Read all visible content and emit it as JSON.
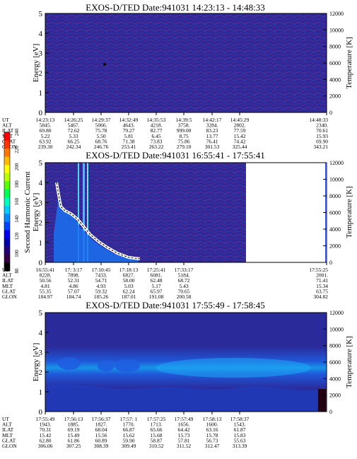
{
  "colorbar": {
    "label": "Second Harmonic Current",
    "ticks": [
      "240",
      "220",
      "200",
      "180",
      "160",
      "140",
      "120",
      "100",
      "80"
    ],
    "colors": [
      "#ff0000",
      "#ff3300",
      "#ff7700",
      "#ffbb00",
      "#ffff00",
      "#bbff00",
      "#55ff00",
      "#00ff55",
      "#00ffbb",
      "#00ccff",
      "#0088ff",
      "#0044ff",
      "#0000ee",
      "#0000aa",
      "#220077",
      "#330044",
      "#000000"
    ]
  },
  "chart_data": [
    {
      "type": "heatmap",
      "title": "EXOS-D/TED   Date:941031  14:23:13 - 14:48:33",
      "ylabel": "Energy [eV]",
      "ylabel2": "Temperature [K]",
      "ylim": [
        0,
        5
      ],
      "yticks": [
        "5",
        "4",
        "3",
        "2",
        "1",
        "0"
      ],
      "y2lim": [
        0,
        12000
      ],
      "y2ticks": [
        "12000",
        "10000",
        "8000",
        "6000",
        "4000",
        "2000",
        "0"
      ],
      "background": "#2a2a9a",
      "ephemeris": {
        "labels": [
          "UT",
          "ALT",
          "ILAT",
          "MLT",
          "GLAT",
          "GLON"
        ],
        "columns": [
          [
            "14:23:13",
            "5845.",
            "69.80",
            "5.22",
            "63.92",
            "239.30"
          ],
          [
            "14:26:25",
            "5467.",
            "72.62",
            "5.33",
            "66.25",
            "242.34"
          ],
          [
            "14:29:37",
            "5066.",
            "75.78",
            "5.50",
            "68.76",
            "246.76"
          ],
          [
            "14:32:49",
            "4643.",
            "79.27",
            "5.81",
            "71.38",
            "253.41"
          ],
          [
            "14:35:53",
            "4218.",
            "82.77",
            "6.45",
            "73.83",
            "263.22"
          ],
          [
            "14:39:5",
            "3758.",
            "999.00",
            "8.75",
            "75.86",
            "279.10"
          ],
          [
            "14:42:17",
            "3284.",
            "83.23",
            "13.77",
            "76.41",
            "301.53"
          ],
          [
            "14:45:29",
            "2802.",
            "77.59",
            "15.42",
            "74.42",
            "325.44"
          ],
          [
            "14:48:33",
            "2340.",
            "70.61",
            "15.93",
            "69.90",
            "343.21"
          ]
        ]
      }
    },
    {
      "type": "heatmap",
      "title": "EXOS-D/TED   Date:941031  16:55:41 - 17:55:41",
      "ylabel": "Energy [eV]",
      "ylabel2": "Temperature [K]",
      "ylim": [
        0,
        5
      ],
      "yticks": [
        "5",
        "4",
        "3",
        "2",
        "1",
        "0"
      ],
      "y2lim": [
        0,
        12000
      ],
      "y2ticks": [
        "12000",
        "10000",
        "8000",
        "6000",
        "4000",
        "2000",
        "0"
      ],
      "background": "#2a2a9a",
      "ephemeris": {
        "labels": [
          "UT",
          "ALT",
          "ILAT",
          "MLT",
          "GLAT",
          "GLON"
        ],
        "columns": [
          [
            "16:55:41",
            "8228.",
            "50.56",
            "4.81",
            "55.35",
            "184.97"
          ],
          [
            "17: 3:17",
            "7898.",
            "52.31",
            "4.86",
            "57.07",
            "184.74"
          ],
          [
            "17:10:45",
            "7433.",
            "54.71",
            "4.93",
            "59.32",
            "185.26"
          ],
          [
            "17:18:13",
            "6827.",
            "58.00",
            "5.03",
            "62.24",
            "187.01"
          ],
          [
            "17:25:41",
            "6081.",
            "62.48",
            "5.17",
            "65.97",
            "191.08"
          ],
          [
            "17:33:17",
            "5184.",
            "68.72",
            "5.43",
            "70.65",
            "200.58"
          ],
          [
            "17:55:25",
            "2001.",
            "71.41",
            "15.34",
            "63.75",
            "304.82"
          ]
        ]
      }
    },
    {
      "type": "heatmap",
      "title": "EXOS-D/TED   Date:941031  17:55:49 - 17:58:45",
      "ylabel": "Energy [eV]",
      "ylabel2": "Temperature [K]",
      "ylim": [
        0,
        5
      ],
      "yticks": [
        "5",
        "4",
        "3",
        "2",
        "1",
        "0"
      ],
      "y2lim": [
        0,
        12000
      ],
      "y2ticks": [
        "12000",
        "10000",
        "8000",
        "6000",
        "4000",
        "2000",
        "0"
      ],
      "background": "#2a2a9a",
      "ephemeris": {
        "labels": [
          "UT",
          "ALT",
          "ILAT",
          "MLT",
          "GLAT",
          "GLON"
        ],
        "columns": [
          [
            "17:55:49",
            "1943.",
            "70.31",
            "15.42",
            "62.80",
            "306.06"
          ],
          [
            "17:56:13",
            "1885.",
            "69.19",
            "15.49",
            "61.86",
            "307.25"
          ],
          [
            "17:56:37",
            "1827.",
            "68.04",
            "15.56",
            "60.89",
            "308.39"
          ],
          [
            "17:57: 1",
            "1770.",
            "66.87",
            "15.62",
            "59.90",
            "309.49"
          ],
          [
            "17:57:25",
            "1713.",
            "65.66",
            "15.68",
            "58.87",
            "310.52"
          ],
          [
            "17:57:49",
            "1656.",
            "64.42",
            "15.73",
            "57.81",
            "311.52"
          ],
          [
            "17:58:13",
            "1600.",
            "63.16",
            "15.78",
            "56.73",
            "312.47"
          ],
          [
            "17:58:37",
            "1543.",
            "61.87",
            "15.83",
            "55.63",
            "313.39"
          ]
        ]
      }
    }
  ]
}
